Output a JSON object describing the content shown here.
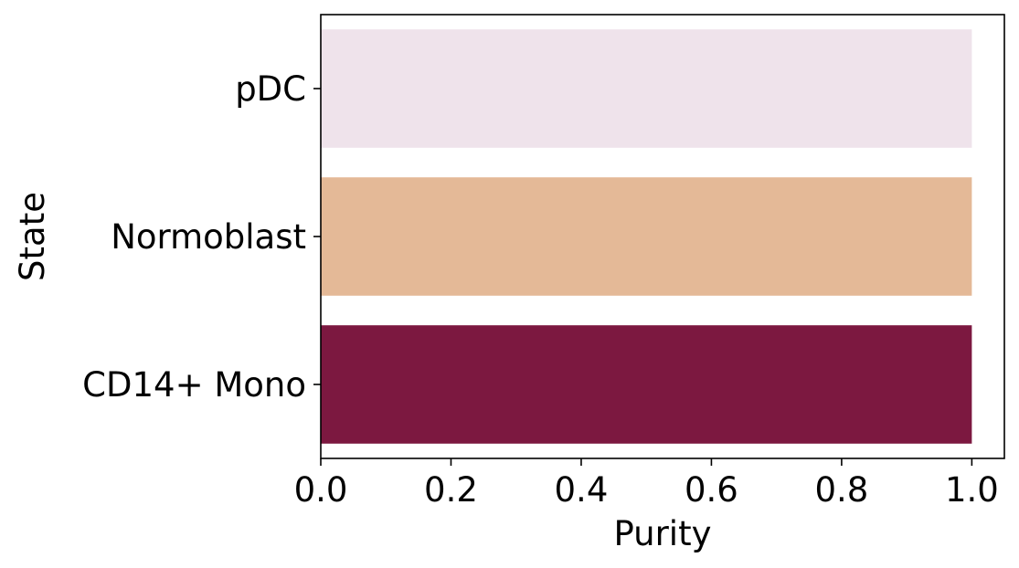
{
  "chart_data": {
    "type": "bar",
    "orientation": "horizontal",
    "title": "",
    "xlabel": "Purity",
    "ylabel": "State",
    "categories": [
      "pDC",
      "Normoblast",
      "CD14+ Mono"
    ],
    "values": [
      1.0,
      1.0,
      1.0
    ],
    "colors": [
      "#efe3eb",
      "#e4b997",
      "#7c1840"
    ],
    "xlim": [
      0,
      1.05
    ],
    "xticks": [
      0.0,
      0.2,
      0.4,
      0.6,
      0.8,
      1.0
    ],
    "xtick_labels": [
      "0.0",
      "0.2",
      "0.4",
      "0.6",
      "0.8",
      "1.0"
    ],
    "grid": false,
    "legend": "none"
  }
}
